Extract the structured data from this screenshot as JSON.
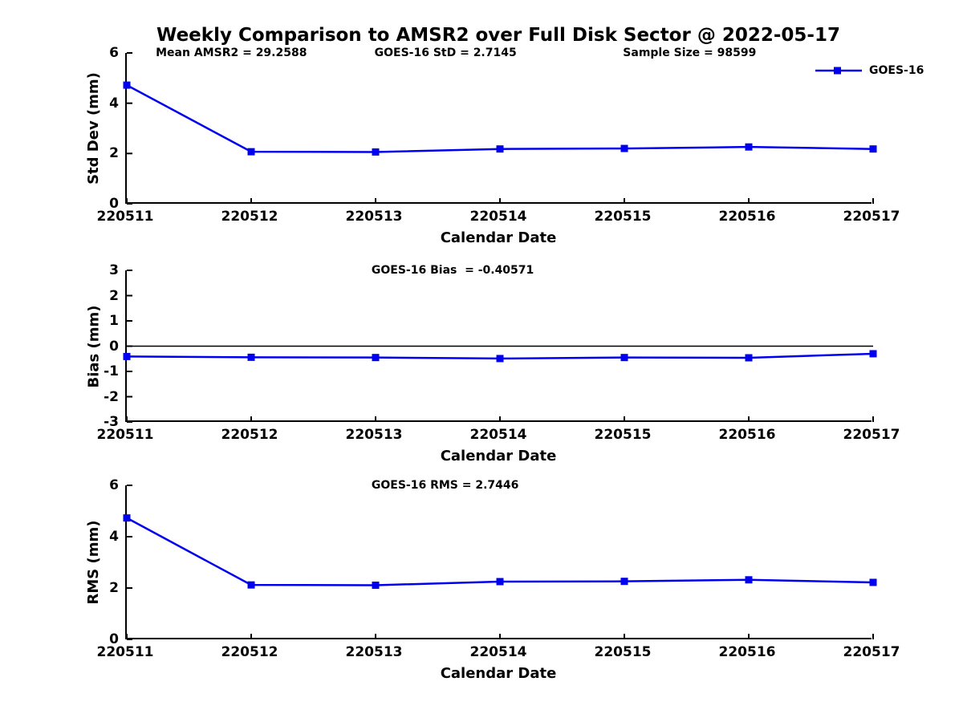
{
  "title": "Weekly Comparison to AMSR2 over Full Disk Sector @ 2022-05-17",
  "legend": {
    "label": "GOES-16",
    "line_color": "#0000EE",
    "marker": "square"
  },
  "colors": {
    "series_blue": "#0000EE",
    "axis_black": "#000000",
    "background": "#FFFFFF"
  },
  "chart_data": [
    {
      "type": "line",
      "annotations": [
        "Mean AMSR2 = 29.2588",
        "GOES-16 StD = 2.7145",
        "Sample Size = 98599"
      ],
      "x": [
        "220511",
        "220512",
        "220513",
        "220514",
        "220515",
        "220516",
        "220517"
      ],
      "series": [
        {
          "name": "GOES-16",
          "values": [
            4.72,
            2.07,
            2.06,
            2.18,
            2.2,
            2.26,
            2.18
          ]
        }
      ],
      "xlabel": "Calendar Date",
      "ylabel": "Std Dev (mm)",
      "ylim": [
        0,
        6
      ],
      "yticks": [
        0,
        2,
        4,
        6
      ],
      "zero_line": false,
      "grid": false,
      "legend_position": "top-right"
    },
    {
      "type": "line",
      "annotations": [
        "GOES-16 Bias  = -0.40571"
      ],
      "x": [
        "220511",
        "220512",
        "220513",
        "220514",
        "220515",
        "220516",
        "220517"
      ],
      "series": [
        {
          "name": "GOES-16",
          "values": [
            -0.41,
            -0.44,
            -0.45,
            -0.49,
            -0.45,
            -0.46,
            -0.3
          ]
        }
      ],
      "xlabel": "Calendar Date",
      "ylabel": "Bias (mm)",
      "ylim": [
        -3,
        3
      ],
      "yticks": [
        -3,
        -2,
        -1,
        0,
        1,
        2,
        3
      ],
      "zero_line": true,
      "grid": false
    },
    {
      "type": "line",
      "annotations": [
        "GOES-16 RMS = 2.7446"
      ],
      "x": [
        "220511",
        "220512",
        "220513",
        "220514",
        "220515",
        "220516",
        "220517"
      ],
      "series": [
        {
          "name": "GOES-16",
          "values": [
            4.73,
            2.12,
            2.11,
            2.25,
            2.26,
            2.32,
            2.22
          ]
        }
      ],
      "xlabel": "Calendar Date",
      "ylabel": "RMS (mm)",
      "ylim": [
        0,
        6
      ],
      "yticks": [
        0,
        2,
        4,
        6
      ],
      "zero_line": false,
      "grid": false
    }
  ]
}
